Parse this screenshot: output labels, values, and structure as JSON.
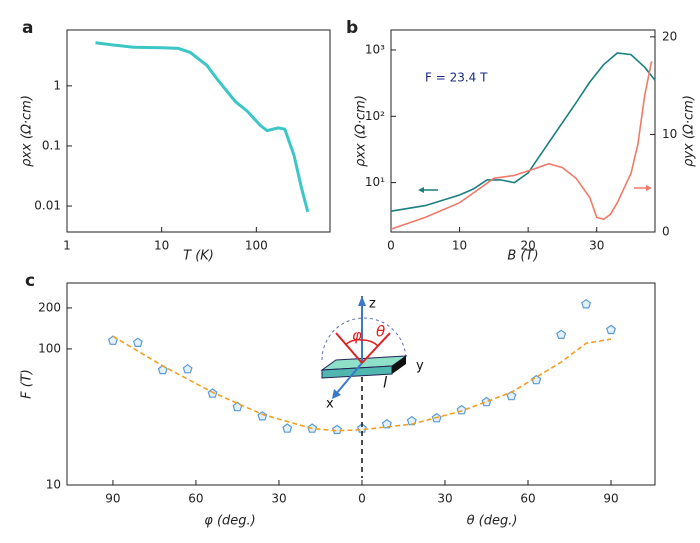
{
  "chart_data": [
    {
      "type": "line",
      "label": "a",
      "xlabel": "T (K)",
      "ylabel": "ρxx (Ω·cm)",
      "xscale": "log",
      "yscale": "log",
      "xlim": [
        1,
        600
      ],
      "ylim": [
        0.0037,
        8.5
      ],
      "xticks": [
        1,
        10,
        100
      ],
      "yticks": [
        0.01,
        0.1,
        1
      ],
      "series": [
        {
          "color": "#3cc6c6",
          "x": [
            2,
            3,
            5,
            10,
            15,
            20,
            30,
            40,
            60,
            80,
            110,
            130,
            170,
            200,
            250,
            300,
            350
          ],
          "values": [
            5.2,
            4.8,
            4.4,
            4.3,
            4.2,
            3.6,
            2.2,
            1.2,
            0.55,
            0.38,
            0.22,
            0.18,
            0.2,
            0.19,
            0.07,
            0.02,
            0.008
          ]
        }
      ]
    },
    {
      "type": "line",
      "label": "b",
      "xlabel": "B (T)",
      "ylabel": "ρxx (Ω·cm)",
      "y2label": "ρyx (Ω·cm)",
      "annotation": "F = 23.4 T",
      "yscale": "log",
      "xlim": [
        0,
        38.5
      ],
      "ylim": [
        1.8,
        2000
      ],
      "y2lim": [
        0,
        20.7
      ],
      "xticks": [
        0,
        10,
        20,
        30
      ],
      "yticks": [
        {
          "value": 10,
          "label": "10¹"
        },
        {
          "value": 100,
          "label": "10²"
        },
        {
          "value": 1000,
          "label": "10³"
        }
      ],
      "y2ticks": [
        0,
        10,
        20
      ],
      "series": [
        {
          "color": "#1b7f80",
          "x": [
            0,
            5,
            10,
            12,
            14,
            16,
            18,
            20,
            23,
            25,
            27,
            29,
            31,
            33,
            35,
            37,
            38.5
          ],
          "values": [
            3.7,
            4.5,
            6.5,
            8,
            11,
            11,
            10,
            14,
            40,
            80,
            160,
            330,
            600,
            900,
            850,
            550,
            350
          ]
        },
        {
          "color": "#f07a6a",
          "axis": "y2",
          "x": [
            0,
            5,
            10,
            12,
            15,
            18,
            21,
            23,
            25,
            27,
            29,
            30,
            31,
            32,
            33,
            34,
            35,
            36,
            37,
            38
          ],
          "values": [
            0.3,
            1.5,
            3,
            4,
            5.5,
            5.8,
            6.5,
            7,
            6.6,
            5.5,
            3.5,
            1.5,
            1.3,
            1.8,
            3,
            4.5,
            6,
            9,
            14,
            17.5
          ]
        }
      ]
    },
    {
      "type": "scatter",
      "label": "c",
      "xlabels": [
        "φ (deg.)",
        "θ (deg.)"
      ],
      "ylabel": "F (T)",
      "annotations": [
        "z",
        "y",
        "x",
        "φ",
        "θ",
        "l"
      ],
      "yscale": "log",
      "xlim": [
        -106.6,
        105.9
      ],
      "ylim": [
        10,
        305
      ],
      "xticks": [
        {
          "value": -90,
          "label": "90"
        },
        {
          "value": -60,
          "label": "60"
        },
        {
          "value": -30,
          "label": "30"
        },
        0,
        30,
        60,
        90
      ],
      "yticks": [
        10,
        100,
        200
      ],
      "series": [
        {
          "kind": "scatter",
          "color": "#5b9bd5",
          "x": [
            -90,
            -81,
            -72,
            -63,
            -54,
            -45,
            -36,
            -27,
            -18,
            -9,
            0,
            9,
            18,
            27,
            36,
            45,
            54,
            63,
            72,
            81,
            90
          ],
          "values": [
            115,
            111,
            70,
            71,
            47,
            37.4,
            32,
            26,
            26,
            25.4,
            26,
            28,
            29.5,
            31,
            35.5,
            40.7,
            45,
            59,
            127,
            213,
            138
          ]
        },
        {
          "kind": "line",
          "dash": true,
          "color": "#f0a020",
          "x": [
            -90,
            -72,
            -54,
            -36,
            -18,
            -9,
            0,
            18,
            36,
            54,
            72,
            81,
            90
          ],
          "values": [
            124,
            75,
            48,
            33,
            26,
            25,
            25.5,
            28,
            35,
            48,
            80,
            110,
            118
          ]
        }
      ]
    }
  ]
}
